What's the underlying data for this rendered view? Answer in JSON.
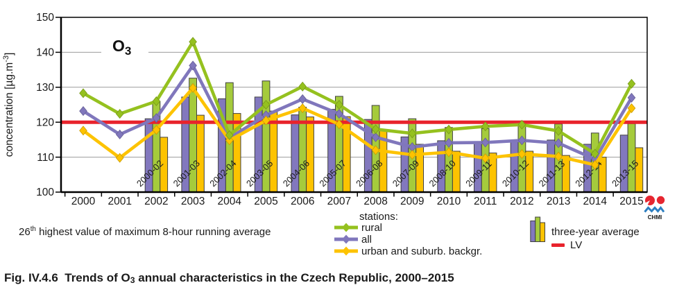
{
  "figure": {
    "o3_label": {
      "main": "O",
      "sub": "3"
    },
    "note": {
      "prefix": "26",
      "sup": "th",
      "rest": " highest value of maximum 8-hour running average"
    },
    "caption": {
      "prefix": "Fig. IV.4.6  Trends of O",
      "sub": "3",
      "suffix": " annual characteristics in the Czech Republic, 2000–2015"
    }
  },
  "legend": {
    "stations_label": "stations:",
    "items": [
      {
        "label": "rural"
      },
      {
        "label": "all"
      },
      {
        "label": "urban and suburb. backgr."
      }
    ],
    "three_year_label": "three-year average",
    "lv_label": "LV"
  },
  "logo": {
    "text": "CHMI",
    "red": "#e62630",
    "blue": "#2d7fc1"
  },
  "chart_data": {
    "type": "combo bar+line",
    "title": "O3",
    "ylabel": "concentration [µg.m-3]",
    "ylabel_parts": {
      "pre": "concentration [µg.m",
      "sup": "-3",
      "post": "]"
    },
    "ylim": [
      100,
      150
    ],
    "yticks": [
      100,
      110,
      120,
      130,
      140,
      150
    ],
    "grid_color": "#9b9b9b",
    "lv_value": 120,
    "lv_color": "#e8232c",
    "years": [
      "2000",
      "2001",
      "2002",
      "2003",
      "2004",
      "2005",
      "2006",
      "2007",
      "2008",
      "2009",
      "2010",
      "2011",
      "2012",
      "2013",
      "2014",
      "2015"
    ],
    "line_series": [
      {
        "name": "rural",
        "color": "#95c11f",
        "values": [
          128.3,
          122.4,
          126.0,
          143.0,
          116.3,
          125.0,
          130.2,
          125.0,
          118.0,
          116.8,
          117.9,
          118.8,
          119.3,
          117.5,
          111.0,
          131.0
        ]
      },
      {
        "name": "all",
        "color": "#8077bc",
        "values": [
          123.2,
          116.5,
          121.2,
          136.2,
          115.5,
          122.0,
          126.6,
          122.4,
          115.7,
          112.9,
          114.1,
          114.2,
          114.8,
          114.0,
          109.4,
          127.0
        ]
      },
      {
        "name": "urban and suburb. backgr.",
        "color": "#fdc300",
        "values": [
          117.6,
          109.8,
          117.8,
          129.8,
          114.8,
          120.5,
          124.0,
          119.4,
          112.0,
          110.7,
          111.4,
          109.7,
          110.9,
          110.2,
          107.8,
          124.0
        ]
      }
    ],
    "bar_series_label": "three-year average",
    "bar_groups": {
      "first_group_year": "2002",
      "labels": [
        "2000-02",
        "2001-03",
        "2002-04",
        "2003-05",
        "2004-06",
        "2005-07",
        "2006-08",
        "2007-09",
        "2008-10",
        "2009-11",
        "2010-12",
        "2011-13",
        "2012-14",
        "2013-15"
      ],
      "series": [
        {
          "name": "all",
          "color": "#8278be",
          "values": [
            121.0,
            127.2,
            126.7,
            127.2,
            122.1,
            123.7,
            120.8,
            115.8,
            114.7,
            114.3,
            114.7,
            114.9,
            113.7,
            116.3
          ]
        },
        {
          "name": "rural",
          "color": "#a5cb3c",
          "values": [
            126.0,
            132.6,
            131.3,
            131.8,
            124.3,
            127.4,
            124.8,
            121.0,
            118.5,
            118.2,
            119.4,
            119.5,
            116.9,
            119.6
          ]
        },
        {
          "name": "urban",
          "color": "#fdc300",
          "values": [
            115.7,
            122.0,
            122.5,
            123.2,
            121.5,
            121.6,
            117.9,
            113.7,
            111.7,
            111.2,
            111.7,
            110.5,
            110.0,
            112.7
          ]
        }
      ]
    },
    "legend_position": "bottom"
  }
}
